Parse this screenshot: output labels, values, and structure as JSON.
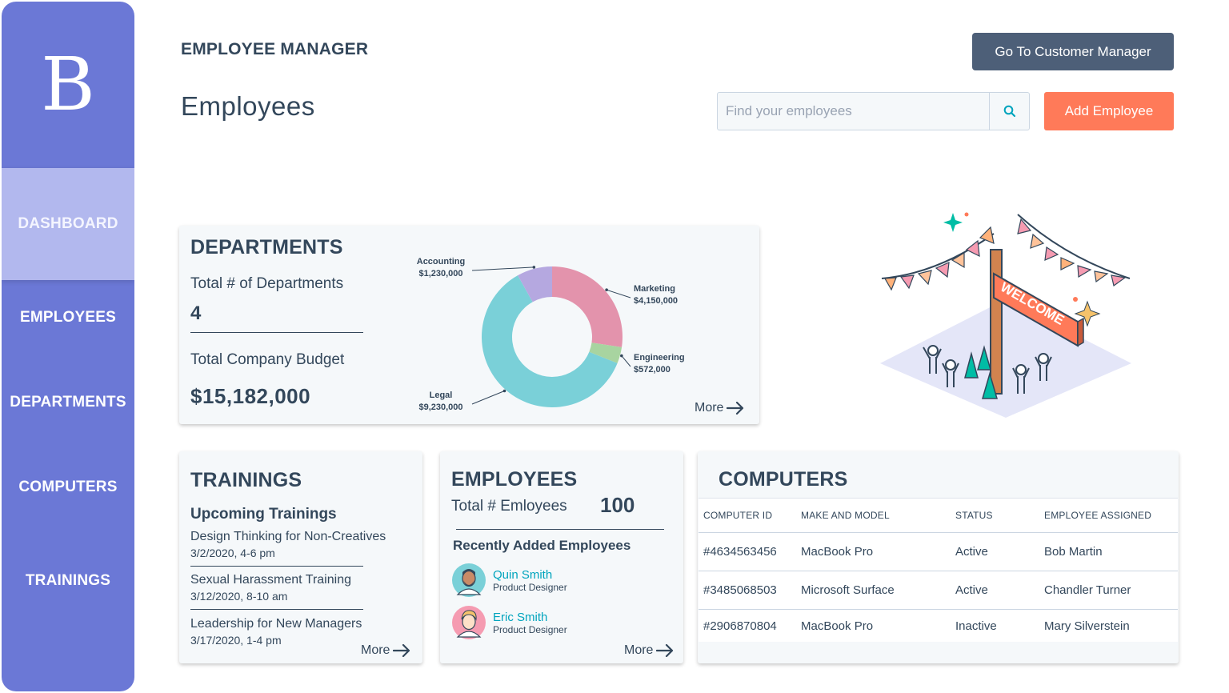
{
  "sidebar": {
    "logo": "B",
    "items": [
      {
        "label": "DASHBOARD",
        "active": true
      },
      {
        "label": "EMPLOYEES"
      },
      {
        "label": "DEPARTMENTS"
      },
      {
        "label": "COMPUTERS"
      },
      {
        "label": "TRAININGS"
      }
    ]
  },
  "header": {
    "app_title": "EMPLOYEE MANAGER",
    "page_title": "Employees",
    "customer_button": "Go To Customer Manager",
    "search_placeholder": "Find your employees",
    "add_button": "Add Employee"
  },
  "departments": {
    "title": "DEPARTMENTS",
    "total_label": "Total # of Departments",
    "total_value": "4",
    "budget_label": "Total Company Budget",
    "budget_value": "$15,182,000",
    "more": "More"
  },
  "chart_data": {
    "type": "pie",
    "donut": true,
    "title": "",
    "categories": [
      "Marketing",
      "Engineering",
      "Legal",
      "Accounting"
    ],
    "values": [
      4150000,
      572000,
      9230000,
      1230000
    ],
    "value_labels": [
      "$4,150,000",
      "$572,000",
      "$9,230,000",
      "$1,230,000"
    ],
    "colors": [
      "#e393ac",
      "#a8d4a0",
      "#7ad0d8",
      "#b5a8e0"
    ]
  },
  "trainings": {
    "title": "TRAININGS",
    "subtitle": "Upcoming Trainings",
    "items": [
      {
        "name": "Design Thinking for Non-Creatives",
        "date": "3/2/2020, 4-6 pm"
      },
      {
        "name": "Sexual Harassment Training",
        "date": "3/12/2020, 8-10 am"
      },
      {
        "name": "Leadership for New Managers",
        "date": "3/17/2020, 1-4 pm"
      }
    ],
    "more": "More"
  },
  "employees": {
    "title": "EMPLOYEES",
    "total_label": "Total # Emloyees",
    "total_value": "100",
    "subtitle": "Recently Added Employees",
    "people": [
      {
        "name": "Quin Smith",
        "role": "Product Designer"
      },
      {
        "name": "Eric Smith",
        "role": "Product Designer"
      }
    ],
    "more": "More"
  },
  "computers": {
    "title": "COMPUTERS",
    "columns": [
      "COMPUTER ID",
      "MAKE AND MODEL",
      "STATUS",
      "EMPLOYEE ASSIGNED"
    ],
    "rows": [
      [
        "#4634563456",
        "MacBook Pro",
        "Active",
        "Bob Martin"
      ],
      [
        "#3485068503",
        "Microsoft Surface",
        "Active",
        "Chandler Turner"
      ],
      [
        "#2906870804",
        "MacBook Pro",
        "Inactive",
        "Mary Silverstein"
      ]
    ]
  },
  "illustration": {
    "sign_text": "WELCOME"
  }
}
